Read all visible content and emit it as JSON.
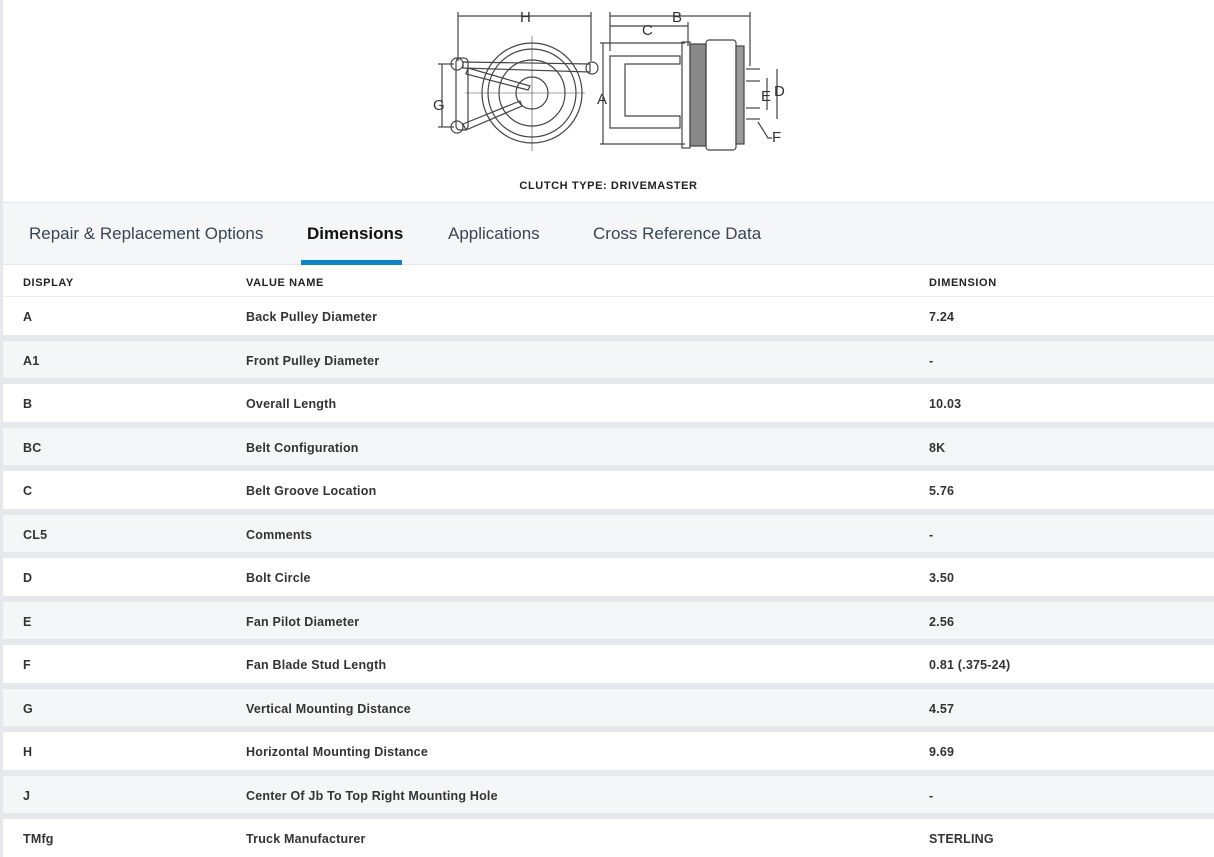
{
  "figure": {
    "caption": "CLUTCH TYPE: DRIVEMASTER",
    "labels": {
      "H": "H",
      "B": "B",
      "C": "C",
      "G": "G",
      "A": "A",
      "E": "E",
      "D": "D",
      "F": "F"
    }
  },
  "tabs": [
    {
      "label": "Repair & Replacement Options",
      "active": false
    },
    {
      "label": "Dimensions",
      "active": true
    },
    {
      "label": "Applications",
      "active": false
    },
    {
      "label": "Cross Reference Data",
      "active": false
    }
  ],
  "accent_color": "#0a84d0",
  "table": {
    "headers": [
      "DISPLAY",
      "VALUE NAME",
      "DIMENSION"
    ],
    "rows": [
      [
        "A",
        "Back Pulley Diameter",
        "7.24"
      ],
      [
        "A1",
        "Front Pulley Diameter",
        "-"
      ],
      [
        "B",
        "Overall Length",
        "10.03"
      ],
      [
        "BC",
        "Belt Configuration",
        "8K"
      ],
      [
        "C",
        "Belt Groove Location",
        "5.76"
      ],
      [
        "CL5",
        "Comments",
        "-"
      ],
      [
        "D",
        "Bolt Circle",
        "3.50"
      ],
      [
        "E",
        "Fan Pilot Diameter",
        "2.56"
      ],
      [
        "F",
        "Fan Blade Stud Length",
        "0.81 (.375-24)"
      ],
      [
        "G",
        "Vertical Mounting Distance",
        "4.57"
      ],
      [
        "H",
        "Horizontal Mounting Distance",
        "9.69"
      ],
      [
        "J",
        "Center Of Jb To Top Right Mounting Hole",
        "-"
      ],
      [
        "TMfg",
        "Truck Manufacturer",
        "STERLING"
      ]
    ]
  }
}
